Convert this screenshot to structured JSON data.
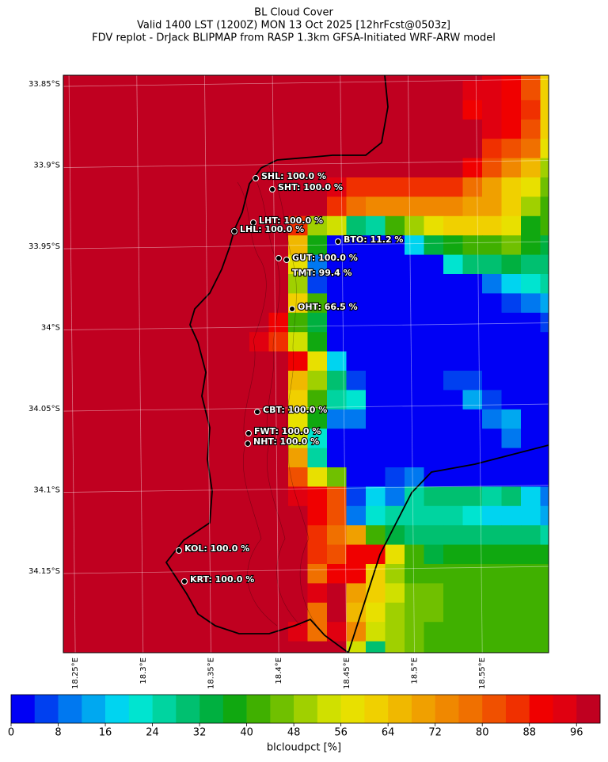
{
  "title": [
    "BL Cloud Cover",
    "Valid 1400 LST (1200Z) MON 13 Oct 2025 [12hrFcst@0503z]",
    "FDV replot - DrJack BLIPMAP from RASP 1.3km GFSA-Initiated WRF-ARW model"
  ],
  "map": {
    "xlim": [
      18.2412,
      18.5989
    ],
    "xticks": [
      {
        "value": 18.25,
        "label": "18.25°E"
      },
      {
        "value": 18.3,
        "label": "18.3°E"
      },
      {
        "value": 18.35,
        "label": "18.35°E"
      },
      {
        "value": 18.4,
        "label": "18.4°E"
      },
      {
        "value": 18.45,
        "label": "18.45°E"
      },
      {
        "value": 18.5,
        "label": "18.5°E"
      },
      {
        "value": 18.55,
        "label": "18.55°E"
      }
    ],
    "ylim": [
      -34.2002,
      -33.8446
    ],
    "yticks": [
      {
        "value": -33.85,
        "label": "33.85°S"
      },
      {
        "value": -33.9,
        "label": "33.9°S"
      },
      {
        "value": -33.95,
        "label": "33.95°S"
      },
      {
        "value": -34,
        "label": "34°S"
      },
      {
        "value": -34.05,
        "label": "34.05°S"
      },
      {
        "value": -34.1,
        "label": "34.1°S"
      },
      {
        "value": -34.15,
        "label": "34.15°S"
      }
    ],
    "cells": [
      [
        100,
        100,
        100,
        100,
        100,
        100,
        100,
        100,
        100,
        100,
        100,
        100,
        100,
        100,
        100,
        100,
        100,
        100,
        100,
        100,
        100,
        96,
        92,
        90,
        80,
        60
      ],
      [
        100,
        100,
        100,
        100,
        100,
        100,
        100,
        100,
        100,
        100,
        100,
        100,
        100,
        100,
        100,
        100,
        100,
        100,
        100,
        100,
        100,
        92,
        92,
        88,
        80,
        60
      ],
      [
        100,
        100,
        100,
        100,
        100,
        100,
        100,
        100,
        100,
        100,
        100,
        100,
        100,
        100,
        100,
        100,
        100,
        100,
        100,
        100,
        100,
        90,
        92,
        88,
        84,
        60
      ],
      [
        100,
        100,
        100,
        100,
        100,
        100,
        100,
        100,
        100,
        100,
        100,
        100,
        100,
        100,
        100,
        100,
        100,
        100,
        100,
        100,
        100,
        100,
        92,
        88,
        80,
        60
      ],
      [
        100,
        100,
        100,
        100,
        100,
        100,
        100,
        100,
        100,
        100,
        100,
        100,
        100,
        100,
        100,
        100,
        100,
        100,
        100,
        100,
        100,
        100,
        84,
        80,
        76,
        56
      ],
      [
        100,
        100,
        100,
        100,
        100,
        100,
        100,
        100,
        100,
        100,
        100,
        100,
        100,
        100,
        100,
        100,
        100,
        100,
        100,
        100,
        100,
        88,
        80,
        72,
        64,
        48
      ],
      [
        100,
        100,
        100,
        100,
        100,
        100,
        100,
        100,
        100,
        100,
        100,
        100,
        100,
        100,
        92,
        84,
        84,
        84,
        84,
        84,
        84,
        76,
        68,
        60,
        56,
        44
      ],
      [
        100,
        100,
        100,
        100,
        100,
        100,
        100,
        100,
        100,
        100,
        100,
        100,
        100,
        100,
        84,
        76,
        72,
        72,
        72,
        72,
        72,
        68,
        68,
        60,
        48,
        40
      ],
      [
        100,
        100,
        100,
        100,
        100,
        100,
        100,
        100,
        100,
        100,
        100,
        100,
        84,
        48,
        52,
        28,
        24,
        40,
        48,
        56,
        60,
        60,
        60,
        56,
        36,
        40
      ],
      [
        100,
        100,
        100,
        100,
        100,
        100,
        100,
        100,
        100,
        100,
        100,
        100,
        64,
        36,
        0,
        0,
        0,
        0,
        16,
        32,
        36,
        40,
        40,
        44,
        36,
        32
      ],
      [
        100,
        100,
        100,
        100,
        100,
        100,
        100,
        100,
        100,
        100,
        100,
        100,
        56,
        8,
        0,
        0,
        0,
        0,
        0,
        0,
        20,
        28,
        28,
        32,
        28,
        28
      ],
      [
        100,
        100,
        100,
        100,
        100,
        100,
        100,
        100,
        100,
        100,
        100,
        100,
        48,
        4,
        0,
        0,
        0,
        0,
        0,
        0,
        0,
        0,
        8,
        16,
        20,
        24
      ],
      [
        100,
        100,
        100,
        100,
        100,
        100,
        100,
        100,
        100,
        100,
        100,
        100,
        60,
        40,
        0,
        0,
        0,
        0,
        0,
        0,
        0,
        0,
        0,
        4,
        8,
        12
      ],
      [
        100,
        100,
        100,
        100,
        100,
        100,
        100,
        100,
        100,
        100,
        100,
        88,
        40,
        32,
        0,
        0,
        0,
        0,
        0,
        0,
        0,
        0,
        0,
        0,
        0,
        4
      ],
      [
        100,
        100,
        100,
        100,
        100,
        100,
        100,
        100,
        100,
        100,
        92,
        84,
        52,
        36,
        0,
        0,
        0,
        0,
        0,
        0,
        0,
        0,
        0,
        0,
        0,
        0
      ],
      [
        100,
        100,
        100,
        100,
        100,
        100,
        100,
        100,
        100,
        100,
        100,
        100,
        88,
        56,
        16,
        0,
        0,
        0,
        0,
        0,
        0,
        0,
        0,
        0,
        0,
        0
      ],
      [
        100,
        100,
        100,
        100,
        100,
        100,
        100,
        100,
        100,
        100,
        100,
        100,
        64,
        48,
        28,
        4,
        0,
        0,
        0,
        0,
        4,
        4,
        0,
        0,
        0,
        0
      ],
      [
        100,
        100,
        100,
        100,
        100,
        100,
        100,
        100,
        100,
        100,
        100,
        100,
        60,
        40,
        24,
        20,
        0,
        0,
        0,
        0,
        0,
        12,
        4,
        0,
        0,
        0
      ],
      [
        100,
        100,
        100,
        100,
        100,
        100,
        100,
        100,
        100,
        100,
        100,
        100,
        56,
        36,
        8,
        8,
        0,
        0,
        0,
        0,
        0,
        0,
        8,
        12,
        0,
        0
      ],
      [
        100,
        100,
        100,
        100,
        100,
        100,
        100,
        100,
        100,
        100,
        100,
        100,
        52,
        20,
        0,
        0,
        0,
        0,
        0,
        0,
        0,
        0,
        0,
        8,
        0,
        0
      ],
      [
        100,
        100,
        100,
        100,
        100,
        100,
        100,
        100,
        100,
        100,
        100,
        100,
        68,
        24,
        0,
        0,
        0,
        0,
        0,
        0,
        0,
        0,
        0,
        0,
        0,
        0
      ],
      [
        100,
        100,
        100,
        100,
        100,
        100,
        100,
        100,
        100,
        100,
        100,
        100,
        80,
        56,
        44,
        0,
        0,
        4,
        8,
        0,
        0,
        0,
        0,
        0,
        0,
        0
      ],
      [
        100,
        100,
        100,
        100,
        100,
        100,
        100,
        100,
        100,
        100,
        100,
        100,
        92,
        88,
        80,
        4,
        16,
        8,
        24,
        28,
        28,
        28,
        24,
        28,
        16,
        8
      ],
      [
        100,
        100,
        100,
        100,
        100,
        100,
        100,
        100,
        100,
        100,
        100,
        100,
        100,
        88,
        80,
        8,
        20,
        24,
        24,
        24,
        24,
        20,
        16,
        16,
        16,
        12
      ],
      [
        100,
        100,
        100,
        100,
        100,
        100,
        100,
        100,
        100,
        100,
        100,
        100,
        100,
        84,
        76,
        68,
        40,
        32,
        28,
        28,
        28,
        28,
        28,
        28,
        28,
        24
      ],
      [
        100,
        100,
        100,
        100,
        100,
        100,
        100,
        100,
        100,
        100,
        100,
        100,
        100,
        84,
        80,
        88,
        88,
        56,
        40,
        32,
        36,
        36,
        36,
        36,
        36,
        36
      ],
      [
        100,
        100,
        100,
        100,
        100,
        100,
        100,
        100,
        100,
        100,
        100,
        100,
        100,
        76,
        88,
        88,
        60,
        48,
        40,
        40,
        40,
        40,
        40,
        40,
        40,
        40
      ],
      [
        100,
        100,
        100,
        100,
        100,
        100,
        100,
        100,
        100,
        100,
        100,
        100,
        100,
        92,
        100,
        68,
        60,
        52,
        44,
        44,
        40,
        40,
        40,
        40,
        40,
        40
      ],
      [
        100,
        100,
        100,
        100,
        100,
        100,
        100,
        100,
        100,
        100,
        100,
        100,
        100,
        76,
        100,
        64,
        56,
        48,
        44,
        44,
        40,
        40,
        40,
        40,
        40,
        40
      ],
      [
        100,
        100,
        100,
        100,
        100,
        100,
        100,
        100,
        100,
        100,
        100,
        100,
        92,
        76,
        92,
        72,
        52,
        48,
        44,
        40,
        40,
        40,
        40,
        40,
        40,
        40
      ],
      [
        100,
        100,
        100,
        100,
        100,
        100,
        100,
        100,
        100,
        100,
        100,
        100,
        100,
        100,
        100,
        52,
        28,
        48,
        44,
        40,
        40,
        40,
        40,
        40,
        40,
        40
      ]
    ],
    "stations": [
      "SHL: 100.0 %",
      "SHT: 100.0 %",
      "LHT: 100.0 %",
      "LHL: 100.0 %",
      "BTO: 11.2 %",
      "GUT: 100.0 %",
      "TMT: 99.4 %",
      "OHT: 66.5 %",
      "CBT: 100.0 %",
      "FWT: 100.0 %",
      "NHT: 100.0 %",
      "KOL: 100.0 %",
      "KRT: 100.0 %"
    ]
  },
  "colorbar": {
    "label": "blcloudpct [%]",
    "lim": [
      0,
      100
    ],
    "ticks": [
      0,
      8,
      16,
      24,
      32,
      40,
      48,
      56,
      64,
      72,
      80,
      88,
      96
    ],
    "colors": [
      "#0000f5",
      "#0040f0",
      "#0078f0",
      "#00a8f0",
      "#00d4f0",
      "#00e4d0",
      "#00d4a0",
      "#00c070",
      "#00b040",
      "#10a810",
      "#40b000",
      "#70c000",
      "#a0d000",
      "#d0e000",
      "#e8e000",
      "#f0d000",
      "#f0b800",
      "#f0a000",
      "#f08800",
      "#f07000",
      "#f05000",
      "#f03000",
      "#f00000",
      "#e00010",
      "#c00020"
    ]
  }
}
